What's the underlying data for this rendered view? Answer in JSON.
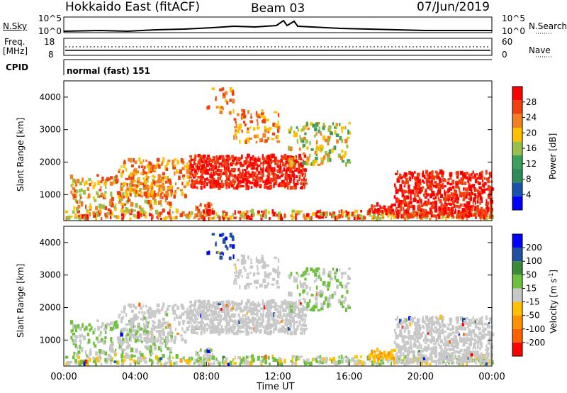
{
  "header": {
    "station": "Hokkaido East (fitACF)",
    "beam": "Beam 03",
    "date": "07/Jun/2019"
  },
  "top_panel": {
    "left_label": "N.Sky",
    "right_label": "N.Search",
    "axis_left_top": "10^5",
    "axis_left_bottom": "10^0",
    "axis_right_top": "10^5",
    "axis_right_bottom": "10^0"
  },
  "freq_panel": {
    "left_label_line1": "Freq.",
    "left_label_line2": "[MHz]",
    "right_label": "Nave",
    "left_top": "18",
    "left_bottom": "8",
    "right_top": "60",
    "right_bottom": "0"
  },
  "cpid": {
    "label": "CPID",
    "text": "normal (fast) 151"
  },
  "colors": {
    "power": [
      "#0000ff",
      "#1a52b0",
      "#2e8a57",
      "#3aa05a",
      "#9ac04a",
      "#ffc000",
      "#f08020",
      "#f04010",
      "#ff0000"
    ],
    "velocity": [
      "#ff0000",
      "#ff6000",
      "#ff9000",
      "#ffc000",
      "#c8c8c8",
      "#70c040",
      "#3a8a3a",
      "#2050a0",
      "#0000ff"
    ]
  },
  "chart_data": [
    {
      "type": "heatmap",
      "name": "power",
      "ylabel": "Slant Range [km]",
      "colorbar_label": "Power [dB]",
      "colorbar_ticks": [
        "28",
        "24",
        "20",
        "16",
        "12",
        "8",
        "4"
      ],
      "yticks": [
        "1000",
        "2000",
        "3000",
        "4000"
      ],
      "xticks": [
        "00:00",
        "04:00",
        "08:00",
        "12:00",
        "16:00",
        "20:00",
        "00:00"
      ],
      "ylim": [
        200,
        4500
      ]
    },
    {
      "type": "heatmap",
      "name": "velocity",
      "ylabel": "Slant Range [km]",
      "colorbar_label": "Velocity [m s^-1]",
      "colorbar_ticks": [
        "200",
        "100",
        "50",
        "15",
        "-15",
        "-50",
        "-100",
        "-200"
      ],
      "yticks": [
        "1000",
        "2000",
        "3000",
        "4000"
      ],
      "xticks": [
        "00:00",
        "04:00",
        "08:00",
        "12:00",
        "16:00",
        "20:00",
        "00:00"
      ],
      "xlabel": "Time UT",
      "ylim": [
        200,
        4500
      ]
    }
  ]
}
